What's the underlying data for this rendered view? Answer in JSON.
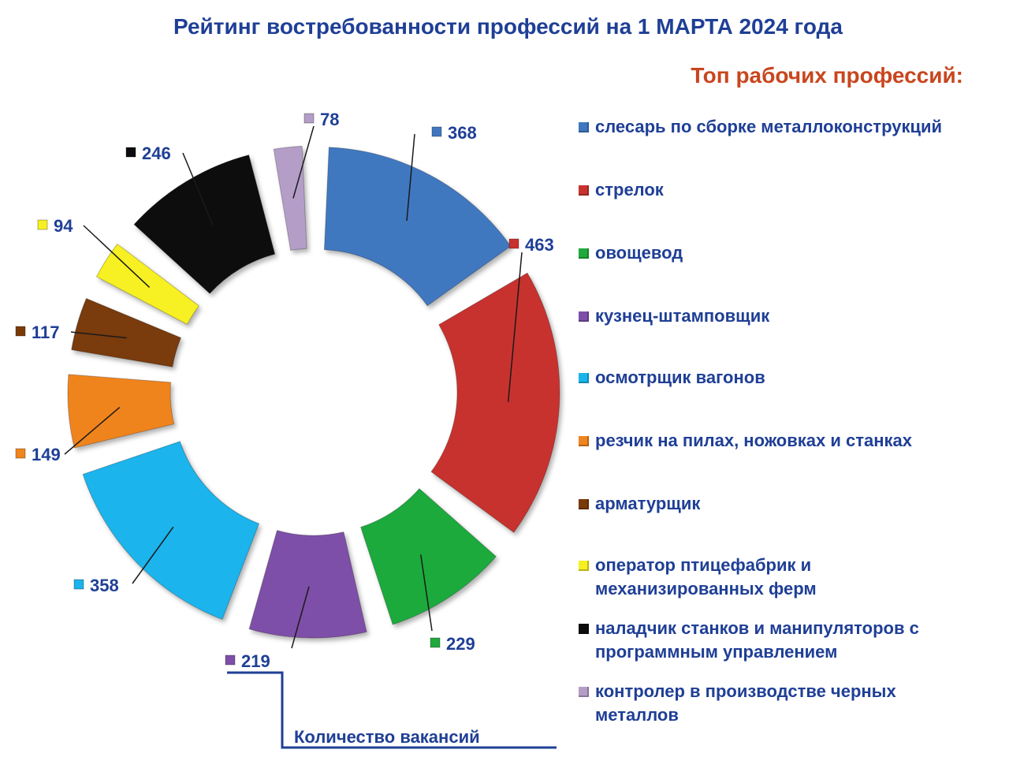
{
  "title": "Рейтинг востребованности профессий на 1 МАРТА 2024 года",
  "subtitle": "Топ рабочих профессий:",
  "note": "Количество вакансий",
  "chart_data": {
    "type": "pie",
    "series": [
      {
        "label": "слесарь по сборке металлоконструкций",
        "value": 368,
        "color": "#3f78c0"
      },
      {
        "label": "стрелок",
        "value": 463,
        "color": "#c8322e"
      },
      {
        "label": "овощевод",
        "value": 229,
        "color": "#1faa3c"
      },
      {
        "label": "кузнец-штамповщик",
        "value": 219,
        "color": "#7e4fa8"
      },
      {
        "label": "осмотрщик вагонов",
        "value": 358,
        "color": "#1ab4ec"
      },
      {
        "label": "резчик на пилах, ножовках и станках",
        "value": 149,
        "color": "#f0841e"
      },
      {
        "label": "арматурщик",
        "value": 117,
        "color": "#7a3a08"
      },
      {
        "label": "оператор птицефабрик и механизированных ферм",
        "value": 94,
        "color": "#f7f020"
      },
      {
        "label": "наладчик станков и манипуляторов с программным управлением",
        "value": 246,
        "color": "#0c0c0c"
      },
      {
        "label": "контролер в производстве черных металлов",
        "value": 78,
        "color": "#b49ec8"
      }
    ]
  }
}
